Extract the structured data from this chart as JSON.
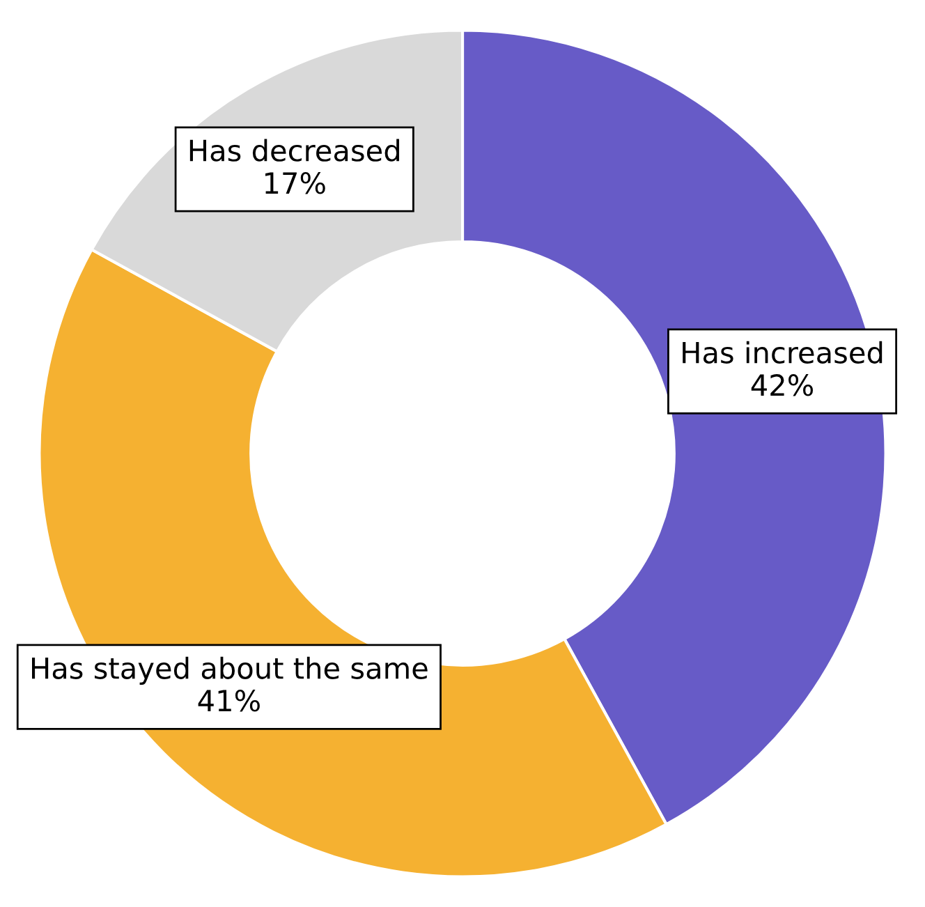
{
  "chart_data": {
    "type": "donut",
    "categories": [
      "Has increased",
      "Has stayed about the same",
      "Has decreased"
    ],
    "values": [
      42,
      41,
      17
    ],
    "colors": [
      "#675bc7",
      "#f5b131",
      "#d9d9d9"
    ],
    "value_labels": [
      "42%",
      "41%",
      "17%"
    ]
  }
}
